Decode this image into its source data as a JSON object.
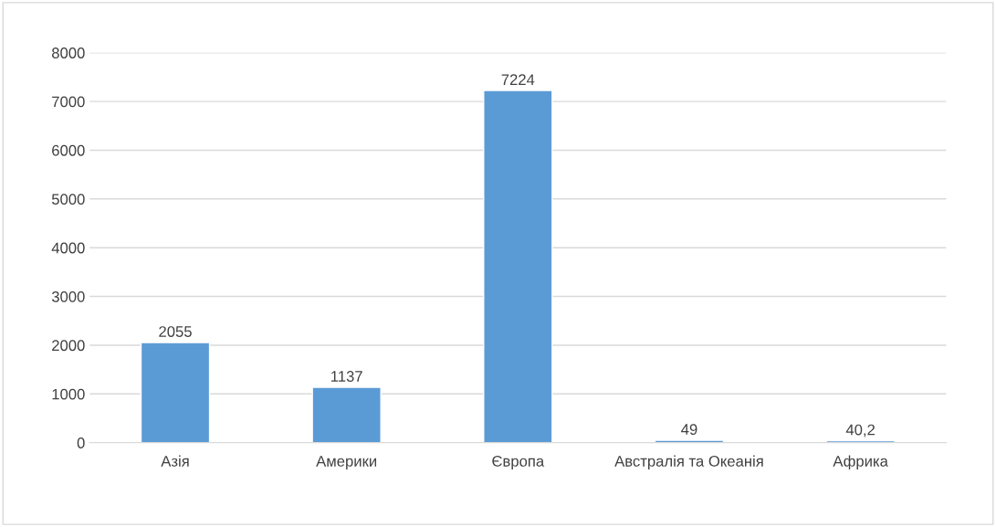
{
  "chart_data": {
    "type": "bar",
    "categories": [
      "Азія",
      "Америки",
      "Європа",
      "Австралія та Океанія",
      "Африка"
    ],
    "values": [
      2055,
      1137,
      7224,
      49,
      40.2
    ],
    "value_labels": [
      "2055",
      "1137",
      "7224",
      "49",
      "40,2"
    ],
    "color": "#5b9bd5",
    "ylim": [
      0,
      8000
    ],
    "yticks": [
      0,
      1000,
      2000,
      3000,
      4000,
      5000,
      6000,
      7000,
      8000
    ],
    "grid": "y"
  }
}
